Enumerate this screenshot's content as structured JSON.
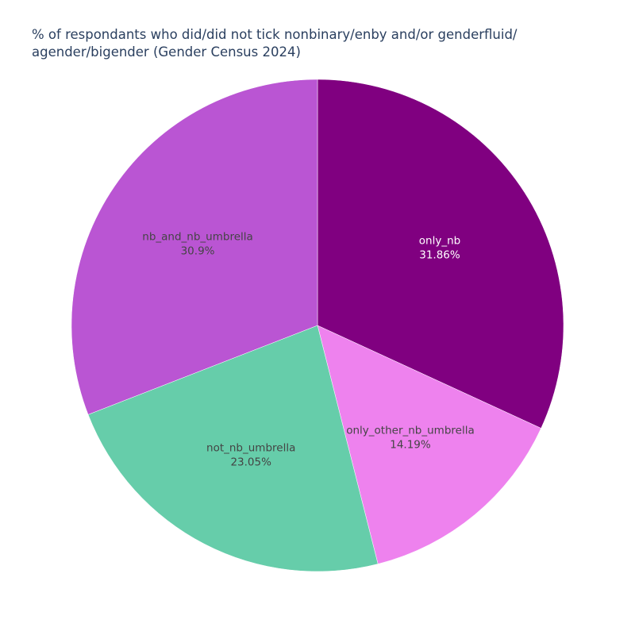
{
  "chart_data": {
    "type": "pie",
    "title_lines": [
      "% of respondants who did/did not tick nonbinary/enby and/or genderfluid/",
      "agender/bigender (Gender Census 2024)"
    ],
    "slices": [
      {
        "label": "only_nb",
        "value": 31.86,
        "value_text": "31.86%",
        "color": "#800080",
        "text_color": "#ffffff"
      },
      {
        "label": "only_other_nb_umbrella",
        "value": 14.19,
        "value_text": "14.19%",
        "color": "#ee82ee",
        "text_color": "#444444"
      },
      {
        "label": "not_nb_umbrella",
        "value": 23.05,
        "value_text": "23.05%",
        "color": "#66cdaa",
        "text_color": "#444444"
      },
      {
        "label": "nb_and_nb_umbrella",
        "value": 30.9,
        "value_text": "30.9%",
        "color": "#ba55d3",
        "text_color": "#444444"
      }
    ],
    "start": "top",
    "direction": "clockwise"
  }
}
